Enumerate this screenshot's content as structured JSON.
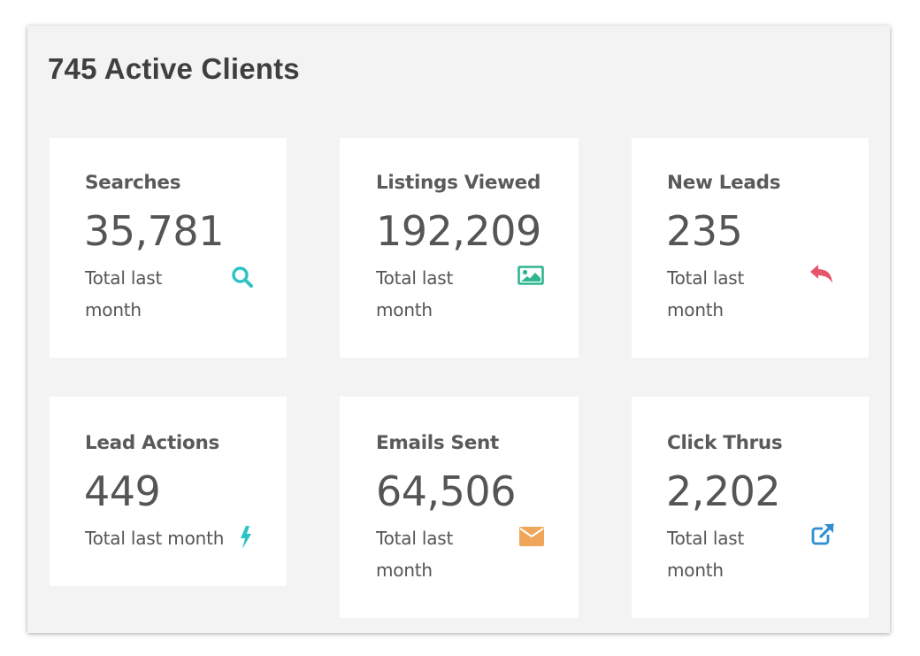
{
  "panel": {
    "title": "745 Active Clients"
  },
  "cards": {
    "searches": {
      "label": "Searches",
      "value": "35,781",
      "sub": "Total last month",
      "icon": "search-icon",
      "color": "#2cc3c3"
    },
    "listings": {
      "label": "Listings Viewed",
      "value": "192,209",
      "sub": "Total last month",
      "icon": "image-icon",
      "color": "#2fb58f"
    },
    "leads": {
      "label": "New Leads",
      "value": "235",
      "sub": "Total last month",
      "icon": "reply-icon",
      "color": "#e5566b"
    },
    "actions": {
      "label": "Lead Actions",
      "value": "449",
      "sub": "Total last month",
      "icon": "bolt-icon",
      "color": "#2cc3c3"
    },
    "emails": {
      "label": "Emails Sent",
      "value": "64,506",
      "sub": "Total last month",
      "icon": "envelope-icon",
      "color": "#f0a65a"
    },
    "clicks": {
      "label": "Click Thrus",
      "value": "2,202",
      "sub": "Total last month",
      "icon": "external-link-icon",
      "color": "#2f8fd1"
    }
  }
}
